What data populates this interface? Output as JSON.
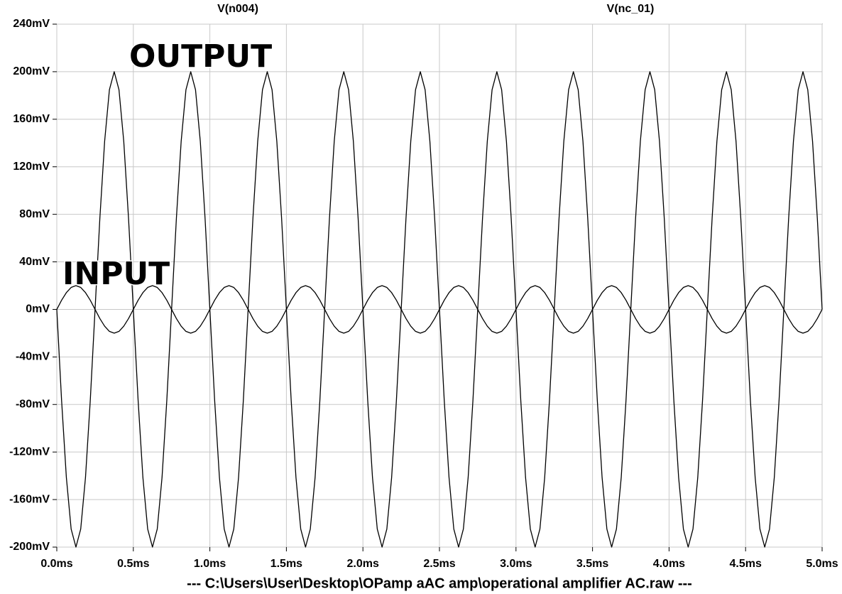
{
  "chart_data": {
    "type": "line",
    "series": [
      {
        "name": "V(n004)",
        "color": "#000000",
        "values": [
          0,
          -76.5,
          -141.4,
          -184.8,
          -200,
          -184.8,
          -141.4,
          -76.5,
          0,
          76.5,
          141.4,
          184.8,
          200,
          184.8,
          141.4,
          76.5,
          0,
          -76.5,
          -141.4,
          -184.8,
          -200,
          -184.8,
          -141.4,
          -76.5,
          0,
          76.5,
          141.4,
          184.8,
          200,
          184.8,
          141.4,
          76.5,
          0,
          -76.5,
          -141.4,
          -184.8,
          -200,
          -184.8,
          -141.4,
          -76.5,
          0,
          76.5,
          141.4,
          184.8,
          200,
          184.8,
          141.4,
          76.5,
          0,
          -76.5,
          -141.4,
          -184.8,
          -200,
          -184.8,
          -141.4,
          -76.5,
          0,
          76.5,
          141.4,
          184.8,
          200,
          184.8,
          141.4,
          76.5,
          0,
          -76.5,
          -141.4,
          -184.8,
          -200,
          -184.8,
          -141.4,
          -76.5,
          0,
          76.5,
          141.4,
          184.8,
          200,
          184.8,
          141.4,
          76.5,
          0,
          -76.5,
          -141.4,
          -184.8,
          -200,
          -184.8,
          -141.4,
          -76.5,
          0,
          76.5,
          141.4,
          184.8,
          200,
          184.8,
          141.4,
          76.5,
          0,
          -76.5,
          -141.4,
          -184.8,
          -200,
          -184.8,
          -141.4,
          -76.5,
          0,
          76.5,
          141.4,
          184.8,
          200,
          184.8,
          141.4,
          76.5,
          0,
          -76.5,
          -141.4,
          -184.8,
          -200,
          -184.8,
          -141.4,
          -76.5,
          0,
          76.5,
          141.4,
          184.8,
          200,
          184.8,
          141.4,
          76.5,
          0,
          -76.5,
          -141.4,
          -184.8,
          -200,
          -184.8,
          -141.4,
          -76.5,
          0,
          76.5,
          141.4,
          184.8,
          200,
          184.8,
          141.4,
          76.5,
          0,
          -76.5,
          -141.4,
          -184.8,
          -200,
          -184.8,
          -141.4,
          -76.5,
          0,
          76.5,
          141.4,
          184.8,
          200,
          184.8,
          141.4,
          76.5,
          0
        ]
      },
      {
        "name": "V(nc_01)",
        "color": "#000000",
        "values": [
          0,
          7.7,
          14.1,
          18.5,
          20,
          18.5,
          14.1,
          7.7,
          0,
          -7.7,
          -14.1,
          -18.5,
          -20,
          -18.5,
          -14.1,
          -7.7,
          0,
          7.7,
          14.1,
          18.5,
          20,
          18.5,
          14.1,
          7.7,
          0,
          -7.7,
          -14.1,
          -18.5,
          -20,
          -18.5,
          -14.1,
          -7.7,
          0,
          7.7,
          14.1,
          18.5,
          20,
          18.5,
          14.1,
          7.7,
          0,
          -7.7,
          -14.1,
          -18.5,
          -20,
          -18.5,
          -14.1,
          -7.7,
          0,
          7.7,
          14.1,
          18.5,
          20,
          18.5,
          14.1,
          7.7,
          0,
          -7.7,
          -14.1,
          -18.5,
          -20,
          -18.5,
          -14.1,
          -7.7,
          0,
          7.7,
          14.1,
          18.5,
          20,
          18.5,
          14.1,
          7.7,
          0,
          -7.7,
          -14.1,
          -18.5,
          -20,
          -18.5,
          -14.1,
          -7.7,
          0,
          7.7,
          14.1,
          18.5,
          20,
          18.5,
          14.1,
          7.7,
          0,
          -7.7,
          -14.1,
          -18.5,
          -20,
          -18.5,
          -14.1,
          -7.7,
          0,
          7.7,
          14.1,
          18.5,
          20,
          18.5,
          14.1,
          7.7,
          0,
          -7.7,
          -14.1,
          -18.5,
          -20,
          -18.5,
          -14.1,
          -7.7,
          0,
          7.7,
          14.1,
          18.5,
          20,
          18.5,
          14.1,
          7.7,
          0,
          -7.7,
          -14.1,
          -18.5,
          -20,
          -18.5,
          -14.1,
          -7.7,
          0,
          7.7,
          14.1,
          18.5,
          20,
          18.5,
          14.1,
          7.7,
          0,
          -7.7,
          -14.1,
          -18.5,
          -20,
          -18.5,
          -14.1,
          -7.7,
          0,
          7.7,
          14.1,
          18.5,
          20,
          18.5,
          14.1,
          7.7,
          0,
          -7.7,
          -14.1,
          -18.5,
          -20,
          -18.5,
          -14.1,
          -7.7,
          0
        ]
      }
    ],
    "x": [
      0,
      0.03125,
      0.0625,
      0.09375,
      0.125,
      0.15625,
      0.1875,
      0.21875,
      0.25,
      0.28125,
      0.3125,
      0.34375,
      0.375,
      0.40625,
      0.4375,
      0.46875,
      0.5,
      0.53125,
      0.5625,
      0.59375,
      0.625,
      0.65625,
      0.6875,
      0.71875,
      0.75,
      0.78125,
      0.8125,
      0.84375,
      0.875,
      0.90625,
      0.9375,
      0.96875,
      1,
      1.03125,
      1.0625,
      1.09375,
      1.125,
      1.15625,
      1.1875,
      1.21875,
      1.25,
      1.28125,
      1.3125,
      1.34375,
      1.375,
      1.40625,
      1.4375,
      1.46875,
      1.5,
      1.53125,
      1.5625,
      1.59375,
      1.625,
      1.65625,
      1.6875,
      1.71875,
      1.75,
      1.78125,
      1.8125,
      1.84375,
      1.875,
      1.90625,
      1.9375,
      1.96875,
      2,
      2.03125,
      2.0625,
      2.09375,
      2.125,
      2.15625,
      2.1875,
      2.21875,
      2.25,
      2.28125,
      2.3125,
      2.34375,
      2.375,
      2.40625,
      2.4375,
      2.46875,
      2.5,
      2.53125,
      2.5625,
      2.59375,
      2.625,
      2.65625,
      2.6875,
      2.71875,
      2.75,
      2.78125,
      2.8125,
      2.84375,
      2.875,
      2.90625,
      2.9375,
      2.96875,
      3,
      3.03125,
      3.0625,
      3.09375,
      3.125,
      3.15625,
      3.1875,
      3.21875,
      3.25,
      3.28125,
      3.3125,
      3.34375,
      3.375,
      3.40625,
      3.4375,
      3.46875,
      3.5,
      3.53125,
      3.5625,
      3.59375,
      3.625,
      3.65625,
      3.6875,
      3.71875,
      3.75,
      3.78125,
      3.8125,
      3.84375,
      3.875,
      3.90625,
      3.9375,
      3.96875,
      4,
      4.03125,
      4.0625,
      4.09375,
      4.125,
      4.15625,
      4.1875,
      4.21875,
      4.25,
      4.28125,
      4.3125,
      4.34375,
      4.375,
      4.40625,
      4.4375,
      4.46875,
      4.5,
      4.53125,
      4.5625,
      4.59375,
      4.625,
      4.65625,
      4.6875,
      4.71875,
      4.75,
      4.78125,
      4.8125,
      4.84375,
      4.875,
      4.90625,
      4.9375,
      4.96875,
      5
    ],
    "xlim": [
      0,
      5
    ],
    "xticks": [
      {
        "value": 0,
        "label": "0.0ms"
      },
      {
        "value": 0.5,
        "label": "0.5ms"
      },
      {
        "value": 1,
        "label": "1.0ms"
      },
      {
        "value": 1.5,
        "label": "1.5ms"
      },
      {
        "value": 2,
        "label": "2.0ms"
      },
      {
        "value": 2.5,
        "label": "2.5ms"
      },
      {
        "value": 3,
        "label": "3.0ms"
      },
      {
        "value": 3.5,
        "label": "3.5ms"
      },
      {
        "value": 4,
        "label": "4.0ms"
      },
      {
        "value": 4.5,
        "label": "4.5ms"
      },
      {
        "value": 5,
        "label": "5.0ms"
      }
    ],
    "ylim": [
      -200,
      240
    ],
    "yticks": [
      {
        "value": 240,
        "label": "240mV"
      },
      {
        "value": 200,
        "label": "200mV"
      },
      {
        "value": 160,
        "label": "160mV"
      },
      {
        "value": 120,
        "label": "120mV"
      },
      {
        "value": 80,
        "label": "80mV"
      },
      {
        "value": 40,
        "label": "40mV"
      },
      {
        "value": 0,
        "label": "0mV"
      },
      {
        "value": -40,
        "label": "-40mV"
      },
      {
        "value": -80,
        "label": "-80mV"
      },
      {
        "value": -120,
        "label": "-120mV"
      },
      {
        "value": -160,
        "label": "-160mV"
      },
      {
        "value": -200,
        "label": "-200mV"
      }
    ],
    "grid": true,
    "annotations": [
      "OUTPUT",
      "INPUT"
    ],
    "x_label": "---  C:\\Users\\User\\Desktop\\OPamp aAC amp\\operational amplifier AC.raw  ---"
  }
}
